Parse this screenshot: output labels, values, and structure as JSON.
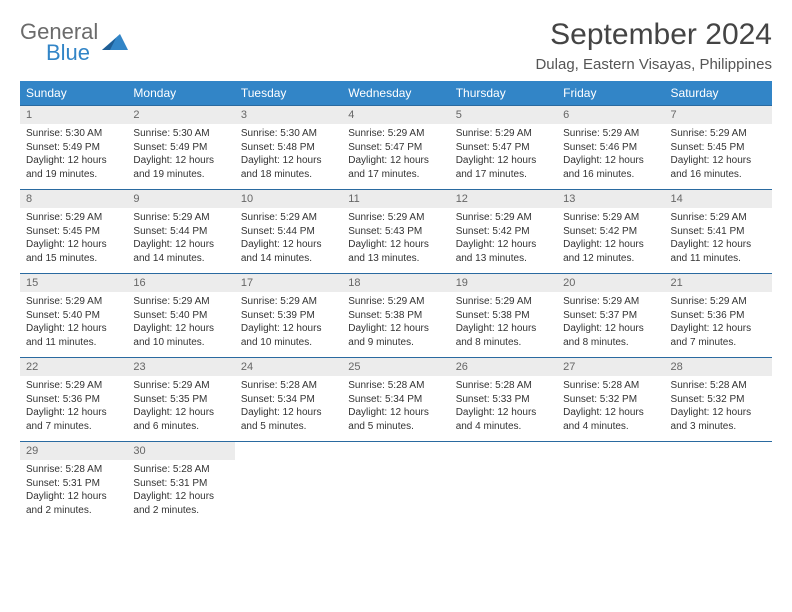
{
  "logo": {
    "line1": "General",
    "line2": "Blue",
    "accent_color": "#3285c7"
  },
  "title": "September 2024",
  "location": "Dulag, Eastern Visayas, Philippines",
  "weekdays": [
    "Sunday",
    "Monday",
    "Tuesday",
    "Wednesday",
    "Thursday",
    "Friday",
    "Saturday"
  ],
  "colors": {
    "header_bg": "#3285c7",
    "header_text": "#ffffff",
    "daynum_bg": "#ececec",
    "daynum_text": "#666666",
    "divider": "#2a6aa0",
    "body_text": "#333333"
  },
  "weeks": [
    [
      {
        "day": "1",
        "sunrise": "Sunrise: 5:30 AM",
        "sunset": "Sunset: 5:49 PM",
        "daylight1": "Daylight: 12 hours",
        "daylight2": "and 19 minutes."
      },
      {
        "day": "2",
        "sunrise": "Sunrise: 5:30 AM",
        "sunset": "Sunset: 5:49 PM",
        "daylight1": "Daylight: 12 hours",
        "daylight2": "and 19 minutes."
      },
      {
        "day": "3",
        "sunrise": "Sunrise: 5:30 AM",
        "sunset": "Sunset: 5:48 PM",
        "daylight1": "Daylight: 12 hours",
        "daylight2": "and 18 minutes."
      },
      {
        "day": "4",
        "sunrise": "Sunrise: 5:29 AM",
        "sunset": "Sunset: 5:47 PM",
        "daylight1": "Daylight: 12 hours",
        "daylight2": "and 17 minutes."
      },
      {
        "day": "5",
        "sunrise": "Sunrise: 5:29 AM",
        "sunset": "Sunset: 5:47 PM",
        "daylight1": "Daylight: 12 hours",
        "daylight2": "and 17 minutes."
      },
      {
        "day": "6",
        "sunrise": "Sunrise: 5:29 AM",
        "sunset": "Sunset: 5:46 PM",
        "daylight1": "Daylight: 12 hours",
        "daylight2": "and 16 minutes."
      },
      {
        "day": "7",
        "sunrise": "Sunrise: 5:29 AM",
        "sunset": "Sunset: 5:45 PM",
        "daylight1": "Daylight: 12 hours",
        "daylight2": "and 16 minutes."
      }
    ],
    [
      {
        "day": "8",
        "sunrise": "Sunrise: 5:29 AM",
        "sunset": "Sunset: 5:45 PM",
        "daylight1": "Daylight: 12 hours",
        "daylight2": "and 15 minutes."
      },
      {
        "day": "9",
        "sunrise": "Sunrise: 5:29 AM",
        "sunset": "Sunset: 5:44 PM",
        "daylight1": "Daylight: 12 hours",
        "daylight2": "and 14 minutes."
      },
      {
        "day": "10",
        "sunrise": "Sunrise: 5:29 AM",
        "sunset": "Sunset: 5:44 PM",
        "daylight1": "Daylight: 12 hours",
        "daylight2": "and 14 minutes."
      },
      {
        "day": "11",
        "sunrise": "Sunrise: 5:29 AM",
        "sunset": "Sunset: 5:43 PM",
        "daylight1": "Daylight: 12 hours",
        "daylight2": "and 13 minutes."
      },
      {
        "day": "12",
        "sunrise": "Sunrise: 5:29 AM",
        "sunset": "Sunset: 5:42 PM",
        "daylight1": "Daylight: 12 hours",
        "daylight2": "and 13 minutes."
      },
      {
        "day": "13",
        "sunrise": "Sunrise: 5:29 AM",
        "sunset": "Sunset: 5:42 PM",
        "daylight1": "Daylight: 12 hours",
        "daylight2": "and 12 minutes."
      },
      {
        "day": "14",
        "sunrise": "Sunrise: 5:29 AM",
        "sunset": "Sunset: 5:41 PM",
        "daylight1": "Daylight: 12 hours",
        "daylight2": "and 11 minutes."
      }
    ],
    [
      {
        "day": "15",
        "sunrise": "Sunrise: 5:29 AM",
        "sunset": "Sunset: 5:40 PM",
        "daylight1": "Daylight: 12 hours",
        "daylight2": "and 11 minutes."
      },
      {
        "day": "16",
        "sunrise": "Sunrise: 5:29 AM",
        "sunset": "Sunset: 5:40 PM",
        "daylight1": "Daylight: 12 hours",
        "daylight2": "and 10 minutes."
      },
      {
        "day": "17",
        "sunrise": "Sunrise: 5:29 AM",
        "sunset": "Sunset: 5:39 PM",
        "daylight1": "Daylight: 12 hours",
        "daylight2": "and 10 minutes."
      },
      {
        "day": "18",
        "sunrise": "Sunrise: 5:29 AM",
        "sunset": "Sunset: 5:38 PM",
        "daylight1": "Daylight: 12 hours",
        "daylight2": "and 9 minutes."
      },
      {
        "day": "19",
        "sunrise": "Sunrise: 5:29 AM",
        "sunset": "Sunset: 5:38 PM",
        "daylight1": "Daylight: 12 hours",
        "daylight2": "and 8 minutes."
      },
      {
        "day": "20",
        "sunrise": "Sunrise: 5:29 AM",
        "sunset": "Sunset: 5:37 PM",
        "daylight1": "Daylight: 12 hours",
        "daylight2": "and 8 minutes."
      },
      {
        "day": "21",
        "sunrise": "Sunrise: 5:29 AM",
        "sunset": "Sunset: 5:36 PM",
        "daylight1": "Daylight: 12 hours",
        "daylight2": "and 7 minutes."
      }
    ],
    [
      {
        "day": "22",
        "sunrise": "Sunrise: 5:29 AM",
        "sunset": "Sunset: 5:36 PM",
        "daylight1": "Daylight: 12 hours",
        "daylight2": "and 7 minutes."
      },
      {
        "day": "23",
        "sunrise": "Sunrise: 5:29 AM",
        "sunset": "Sunset: 5:35 PM",
        "daylight1": "Daylight: 12 hours",
        "daylight2": "and 6 minutes."
      },
      {
        "day": "24",
        "sunrise": "Sunrise: 5:28 AM",
        "sunset": "Sunset: 5:34 PM",
        "daylight1": "Daylight: 12 hours",
        "daylight2": "and 5 minutes."
      },
      {
        "day": "25",
        "sunrise": "Sunrise: 5:28 AM",
        "sunset": "Sunset: 5:34 PM",
        "daylight1": "Daylight: 12 hours",
        "daylight2": "and 5 minutes."
      },
      {
        "day": "26",
        "sunrise": "Sunrise: 5:28 AM",
        "sunset": "Sunset: 5:33 PM",
        "daylight1": "Daylight: 12 hours",
        "daylight2": "and 4 minutes."
      },
      {
        "day": "27",
        "sunrise": "Sunrise: 5:28 AM",
        "sunset": "Sunset: 5:32 PM",
        "daylight1": "Daylight: 12 hours",
        "daylight2": "and 4 minutes."
      },
      {
        "day": "28",
        "sunrise": "Sunrise: 5:28 AM",
        "sunset": "Sunset: 5:32 PM",
        "daylight1": "Daylight: 12 hours",
        "daylight2": "and 3 minutes."
      }
    ],
    [
      {
        "day": "29",
        "sunrise": "Sunrise: 5:28 AM",
        "sunset": "Sunset: 5:31 PM",
        "daylight1": "Daylight: 12 hours",
        "daylight2": "and 2 minutes."
      },
      {
        "day": "30",
        "sunrise": "Sunrise: 5:28 AM",
        "sunset": "Sunset: 5:31 PM",
        "daylight1": "Daylight: 12 hours",
        "daylight2": "and 2 minutes."
      },
      null,
      null,
      null,
      null,
      null
    ]
  ]
}
